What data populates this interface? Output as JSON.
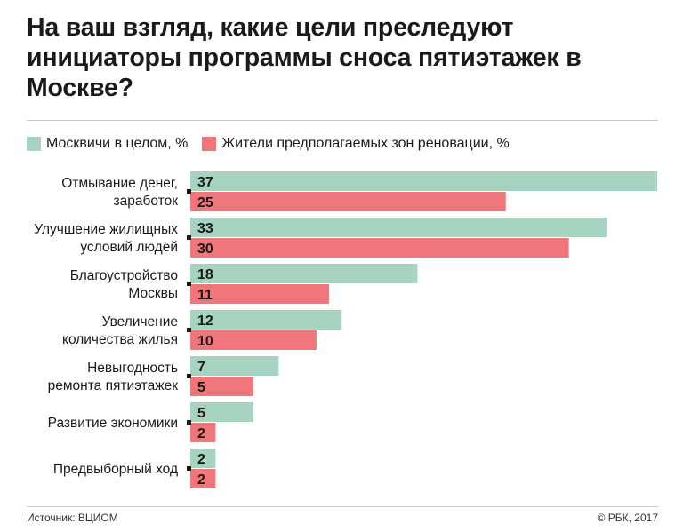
{
  "title": "На ваш взгляд, какие цели преследуют инициаторы программы сноса пятиэтажек в Москве?",
  "footer": {
    "source": "Источник: ВЦИОМ",
    "copyright": "© РБК, 2017"
  },
  "colors": {
    "series1": "#a6d4c1",
    "series2": "#ef767a",
    "marker": "#1a1a1a"
  },
  "chart_data": {
    "type": "bar",
    "orientation": "horizontal",
    "title": "На ваш взгляд, какие цели преследуют инициаторы программы сноса пятиэтажек в Москве?",
    "legend_placement": "top-left",
    "grid": false,
    "xlim": [
      0,
      37
    ],
    "categories": [
      [
        "Отмывание денег,",
        "заработок"
      ],
      [
        "Улучшение жилищных",
        "условий людей"
      ],
      [
        "Благоустройство",
        "Москвы"
      ],
      [
        "Увеличение",
        "количества жилья"
      ],
      [
        "Невыгодность",
        "ремонта пятиэтажек"
      ],
      [
        "Развитие экономики"
      ],
      [
        "Предвыборный ход"
      ]
    ],
    "series": [
      {
        "name": "Москвичи в целом, %",
        "values": [
          37,
          33,
          18,
          12,
          7,
          5,
          2
        ]
      },
      {
        "name": "Жители предполагаемых зон реновации, %",
        "values": [
          25,
          30,
          11,
          10,
          5,
          2,
          2
        ]
      }
    ]
  }
}
